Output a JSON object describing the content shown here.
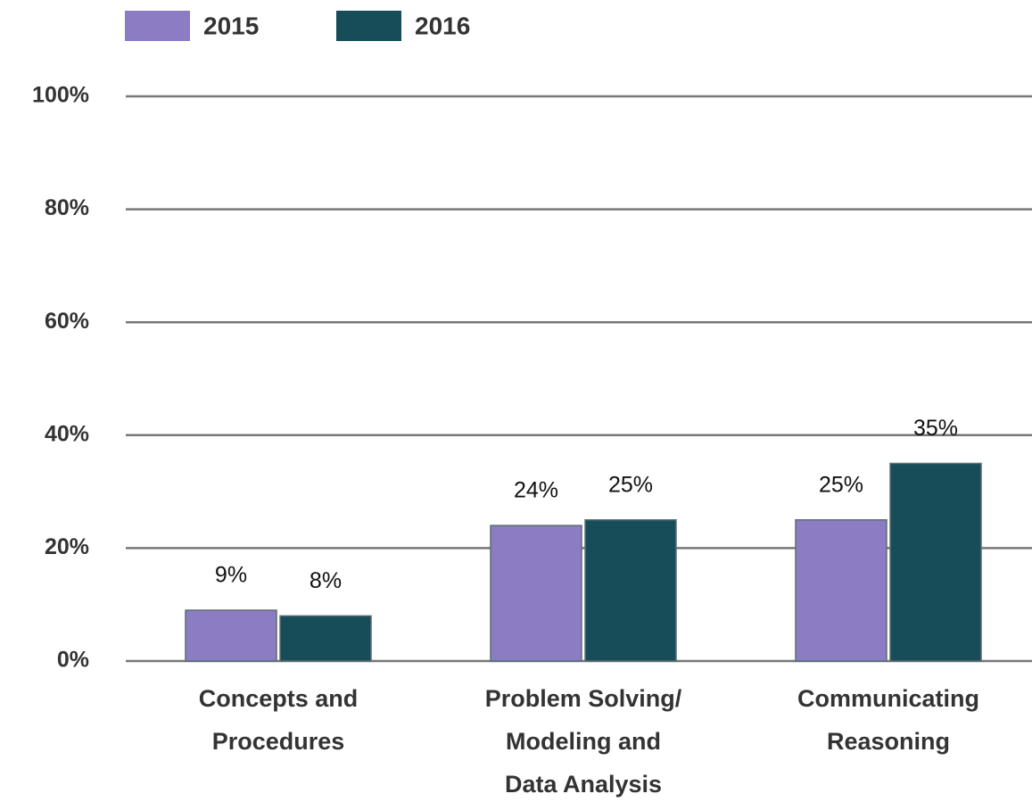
{
  "chart_data": {
    "type": "bar",
    "categories": [
      [
        "Concepts and",
        "Procedures"
      ],
      [
        "Problem Solving/",
        "Modeling and",
        "Data Analysis"
      ],
      [
        "Communicating",
        "Reasoning"
      ]
    ],
    "series": [
      {
        "name": "2015",
        "color": "#8c7cc3",
        "values": [
          9,
          24,
          25
        ],
        "value_labels": [
          "9%",
          "24%",
          "25%"
        ]
      },
      {
        "name": "2016",
        "color": "#164d59",
        "values": [
          8,
          25,
          35
        ],
        "value_labels": [
          "8%",
          "25%",
          "35%"
        ]
      }
    ],
    "ylim": [
      0,
      100
    ],
    "yticks": [
      {
        "value": 0,
        "label": "0%"
      },
      {
        "value": 20,
        "label": "20%"
      },
      {
        "value": 40,
        "label": "40%"
      },
      {
        "value": 60,
        "label": "60%"
      },
      {
        "value": 80,
        "label": "80%"
      },
      {
        "value": 100,
        "label": "100%"
      }
    ],
    "grid": true,
    "legend": "top"
  }
}
